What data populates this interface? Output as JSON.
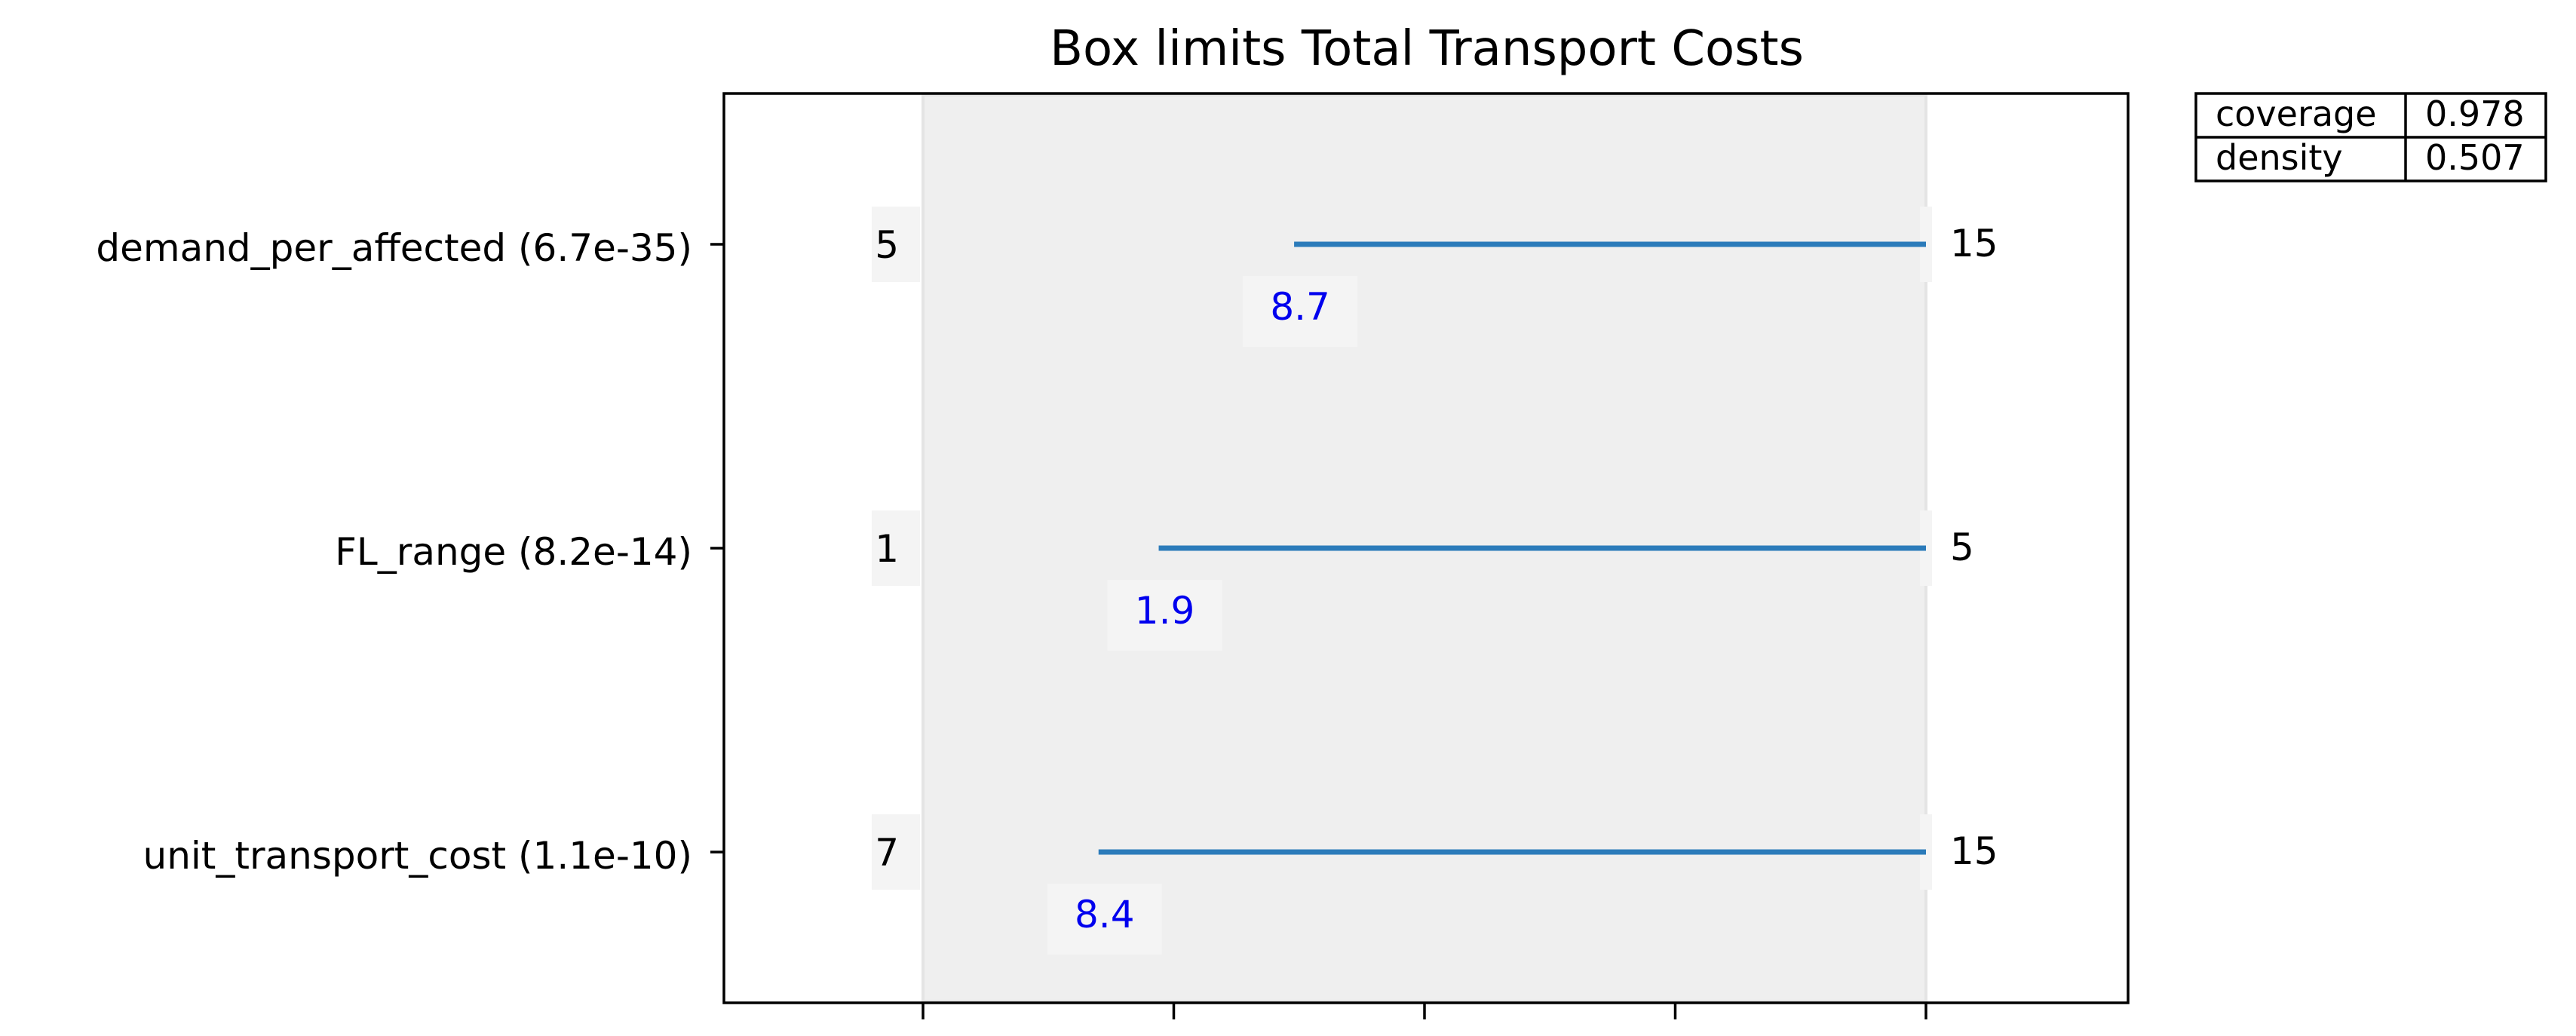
{
  "chart_data": {
    "type": "box-limits",
    "title": "Box limits Total Transport Costs",
    "xlabel": "",
    "ylabel": "",
    "grid": false,
    "x_range": [
      0,
      1
    ],
    "x_ticks": [
      0,
      0.25,
      0.5,
      0.75,
      1.0
    ],
    "colors": {
      "limit_line": "#2b7bba",
      "shaded_box": "#efefef",
      "lower_label": "#0000ee",
      "axis": "#000000"
    },
    "rows": [
      {
        "name": "demand_per_affected (6.7e-35)",
        "range_min": "5",
        "range_max": "15",
        "limit_label": "8.7",
        "box_lower": 0.37,
        "box_upper": 1.0
      },
      {
        "name": "FL_range (8.2e-14)",
        "range_min": "1",
        "range_max": "5",
        "limit_label": "1.9",
        "box_lower": 0.235,
        "box_upper": 1.0
      },
      {
        "name": "unit_transport_cost (1.1e-10)",
        "range_min": "7",
        "range_max": "15",
        "limit_label": "8.4",
        "box_lower": 0.175,
        "box_upper": 1.0
      }
    ],
    "stats_table": [
      {
        "label": "coverage",
        "value": "0.978"
      },
      {
        "label": "density",
        "value": "0.507"
      }
    ]
  }
}
